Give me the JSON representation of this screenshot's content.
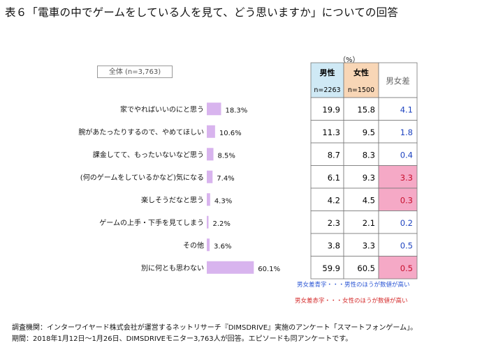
{
  "title": "表６「電車の中でゲームをしている人を見て、どう思いますか」についての回答",
  "unit_label": "（%）",
  "total_label": "全体 (n=3,763)",
  "table_headers": {
    "male": "男性",
    "male_n": "n=2263",
    "female": "女性",
    "female_n": "n=1500",
    "diff": "男女差"
  },
  "legend": {
    "blue": "男女差青字・・・男性のほうが数値が高い",
    "red": "男女差赤字・・・女性のほうが数値が高い"
  },
  "footer": {
    "line1": "調査機関：インターワイヤード株式会社が運営するネットリサーチ『DIMSDRIVE』実施のアンケート「スマートフォンゲーム」。",
    "line2": "期間：2018年1月12日～1月26日、DIMSDRIVEモニター3,763人が回答。エピソードも同アンケートです。"
  },
  "colors": {
    "bar": "#d8b4ee",
    "male_header": "#cfe9f5",
    "female_header": "#f8d6b6",
    "red_cell": "#f5a9c6",
    "blue_text": "#1f44c0",
    "red_text": "#c8102e"
  },
  "chart_data": {
    "type": "bar",
    "orientation": "horizontal",
    "categories": [
      "家でやればいいのにと思う",
      "腕があたったりするので、やめてほしい",
      "課金してて、もったいないなど思う",
      "(何のゲームをしているかなど)気になる",
      "楽しそうだなと思う",
      "ゲームの上手・下手を見てしまう",
      "その他",
      "別に何とも思わない"
    ],
    "series": [
      {
        "name": "全体 (n=3,763)",
        "values": [
          18.3,
          10.6,
          8.5,
          7.4,
          4.3,
          2.2,
          3.6,
          60.1
        ]
      }
    ],
    "value_labels": [
      "18.3%",
      "10.6%",
      "8.5%",
      "7.4%",
      "4.3%",
      "2.2%",
      "3.6%",
      "60.1%"
    ],
    "xlim": [
      0,
      100
    ],
    "table": {
      "male": [
        "19.9",
        "11.3",
        "8.7",
        "6.1",
        "4.2",
        "2.3",
        "3.8",
        "59.9"
      ],
      "female": [
        "15.8",
        "9.5",
        "8.3",
        "9.3",
        "4.5",
        "2.1",
        "3.3",
        "60.5"
      ],
      "diff": [
        "4.1",
        "1.8",
        "0.4",
        "3.3",
        "0.3",
        "0.2",
        "0.5",
        "0.5"
      ],
      "diff_sign": [
        "male",
        "male",
        "male",
        "female",
        "female",
        "male",
        "male",
        "female"
      ]
    }
  }
}
